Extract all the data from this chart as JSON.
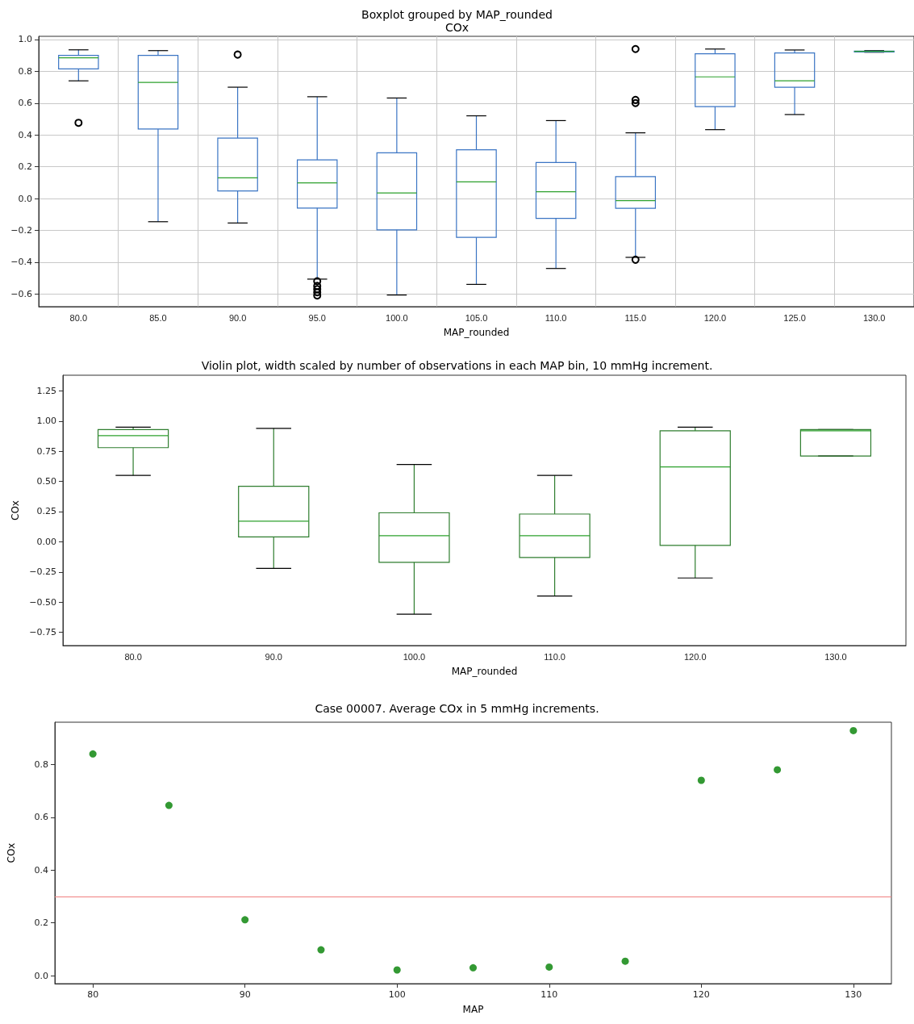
{
  "chart_data": [
    {
      "type": "box",
      "title": "Boxplot grouped by MAP_rounded",
      "subtitle": "COx",
      "xlabel": "MAP_rounded",
      "categories": [
        "80.0",
        "85.0",
        "90.0",
        "95.0",
        "100.0",
        "105.0",
        "110.0",
        "115.0",
        "120.0",
        "125.0",
        "130.0"
      ],
      "ylim": [
        -0.68,
        1.02
      ],
      "yticks": [
        {
          "value": -0.6,
          "label": "−0.6"
        },
        {
          "value": -0.4,
          "label": "−0.4"
        },
        {
          "value": -0.2,
          "label": "−0.2"
        },
        {
          "value": 0,
          "label": "0.0"
        },
        {
          "value": 0.2,
          "label": "0.2"
        },
        {
          "value": 0.4,
          "label": "0.4"
        },
        {
          "value": 0.6,
          "label": "0.6"
        },
        {
          "value": 0.8,
          "label": "0.8"
        },
        {
          "value": 1,
          "label": "1.0"
        }
      ],
      "grid": true,
      "color": "#3b75c4",
      "boxes": [
        {
          "low": 0.74,
          "q1": 0.815,
          "median": 0.885,
          "q3": 0.9,
          "high": 0.935,
          "outliers": [
            0.476
          ]
        },
        {
          "low": -0.146,
          "q1": 0.437,
          "median": 0.73,
          "q3": 0.9,
          "high": 0.93
        },
        {
          "low": -0.154,
          "q1": 0.048,
          "median": 0.13,
          "q3": 0.38,
          "high": 0.7,
          "outliers": [
            0.905
          ]
        },
        {
          "low": -0.507,
          "q1": -0.06,
          "median": 0.098,
          "q3": 0.243,
          "high": 0.64,
          "outliers": [
            -0.52,
            -0.55,
            -0.57,
            -0.59,
            -0.61
          ]
        },
        {
          "low": -0.607,
          "q1": -0.197,
          "median": 0.035,
          "q3": 0.287,
          "high": 0.632
        },
        {
          "low": -0.54,
          "q1": -0.244,
          "median": 0.105,
          "q3": 0.306,
          "high": 0.52
        },
        {
          "low": -0.44,
          "q1": -0.125,
          "median": 0.042,
          "q3": 0.226,
          "high": 0.49
        },
        {
          "low": -0.37,
          "q1": -0.062,
          "median": -0.013,
          "q3": 0.138,
          "high": 0.413,
          "outliers": [
            0.94,
            0.62,
            0.6,
            -0.385
          ]
        },
        {
          "low": 0.433,
          "q1": 0.578,
          "median": 0.765,
          "q3": 0.91,
          "high": 0.94
        },
        {
          "low": 0.528,
          "q1": 0.7,
          "median": 0.74,
          "q3": 0.915,
          "high": 0.934
        },
        {
          "low": 0.92,
          "q1": 0.922,
          "median": 0.925,
          "q3": 0.927,
          "high": 0.93
        }
      ]
    },
    {
      "type": "box",
      "title": "Violin plot, width scaled by number of observations in each MAP bin, 10 mmHg increment.",
      "xlabel": "MAP_rounded",
      "ylabel": "COx",
      "categories": [
        "80.0",
        "90.0",
        "100.0",
        "110.0",
        "120.0",
        "130.0"
      ],
      "ylim": [
        -0.86,
        1.38
      ],
      "yticks": [
        {
          "value": -0.75,
          "label": "−0.75"
        },
        {
          "value": -0.5,
          "label": "−0.50"
        },
        {
          "value": -0.25,
          "label": "−0.25"
        },
        {
          "value": 0,
          "label": "0.00"
        },
        {
          "value": 0.25,
          "label": "0.25"
        },
        {
          "value": 0.5,
          "label": "0.50"
        },
        {
          "value": 0.75,
          "label": "0.75"
        },
        {
          "value": 1,
          "label": "1.00"
        },
        {
          "value": 1.25,
          "label": "1.25"
        }
      ],
      "color": "#2e7d2e",
      "boxes": [
        {
          "low": 0.55,
          "q1": 0.78,
          "median": 0.88,
          "q3": 0.93,
          "high": 0.95
        },
        {
          "low": -0.22,
          "q1": 0.04,
          "median": 0.17,
          "q3": 0.46,
          "high": 0.94
        },
        {
          "low": -0.6,
          "q1": -0.17,
          "median": 0.05,
          "q3": 0.24,
          "high": 0.64
        },
        {
          "low": -0.45,
          "q1": -0.13,
          "median": 0.05,
          "q3": 0.23,
          "high": 0.55
        },
        {
          "low": -0.3,
          "q1": -0.03,
          "median": 0.62,
          "q3": 0.92,
          "high": 0.95
        },
        {
          "low": 0.71,
          "q1": 0.71,
          "median": 0.92,
          "q3": 0.93,
          "high": 0.93
        }
      ]
    },
    {
      "type": "scatter",
      "title": "Case 00007. Average COx in 5 mmHg increments.",
      "xlabel": "MAP",
      "ylabel": "COx",
      "x": [
        80,
        85,
        90,
        95,
        100,
        105,
        110,
        115,
        120,
        125,
        130
      ],
      "values": [
        0.84,
        0.645,
        0.212,
        0.098,
        0.022,
        0.03,
        0.033,
        0.055,
        0.74,
        0.78,
        0.928
      ],
      "color": "#008000",
      "marker": "circle",
      "xlim": [
        77.5,
        132.5
      ],
      "xticks": [
        80,
        90,
        100,
        110,
        120,
        130
      ],
      "ylim": [
        -0.03,
        0.96
      ],
      "yticks": [
        {
          "value": 0,
          "label": "0.0"
        },
        {
          "value": 0.2,
          "label": "0.2"
        },
        {
          "value": 0.4,
          "label": "0.4"
        },
        {
          "value": 0.6,
          "label": "0.6"
        },
        {
          "value": 0.8,
          "label": "0.8"
        }
      ],
      "ref_lines": [
        {
          "axis": "y",
          "value": 0.3,
          "color": "#f08080"
        }
      ]
    }
  ]
}
